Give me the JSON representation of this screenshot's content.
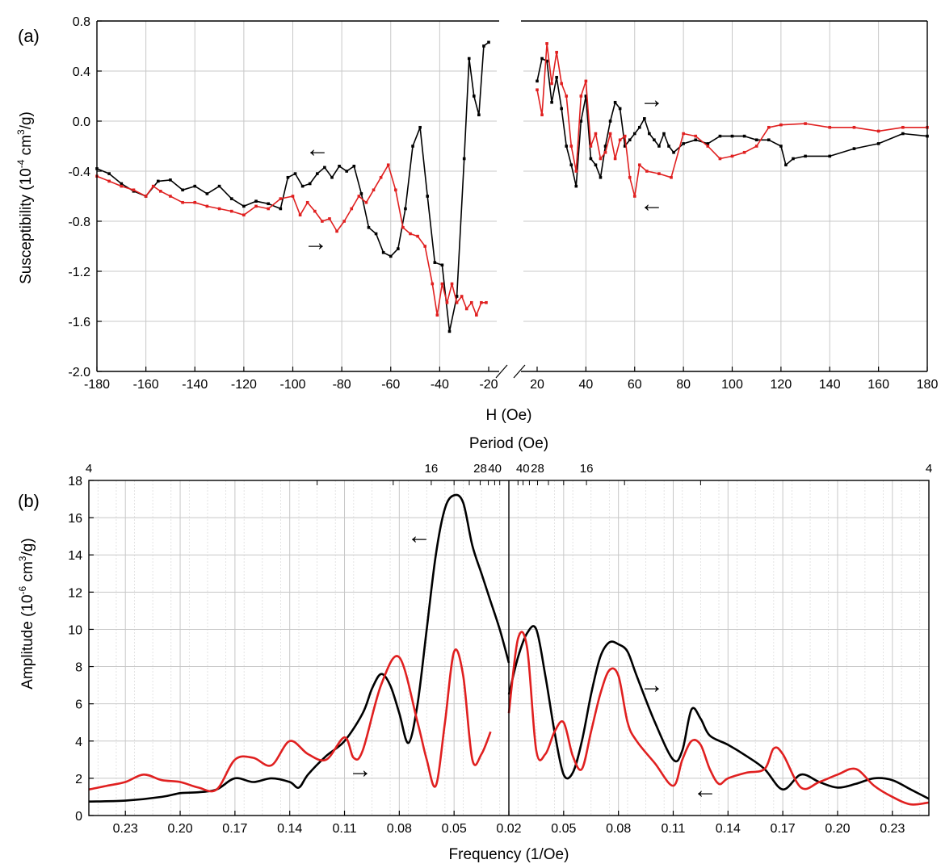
{
  "chart_data": [
    {
      "panel_label": "(a)",
      "type": "line",
      "xlabel": "H (Oe)",
      "ylabel": "Susceptibility (10^-4 cm^3/g)",
      "ylabel_parts": {
        "base": "Susceptibility (10",
        "exp1": "-4",
        "mid": " cm",
        "exp2": "3",
        "tail": "/g)"
      },
      "ylim": [
        -2.0,
        0.8
      ],
      "yticks": [
        "0.8",
        "0.4",
        "0.0",
        "-0.4",
        "-0.8",
        "-1.2",
        "-1.6",
        "-2.0"
      ],
      "ytick_values": [
        0.8,
        0.4,
        0.0,
        -0.4,
        -0.8,
        -1.2,
        -1.6,
        -2.0
      ],
      "x_left_range": [
        -180,
        -20
      ],
      "x_right_range": [
        20,
        180
      ],
      "xticks_left": [
        "-180",
        "-160",
        "-140",
        "-120",
        "-100",
        "-80",
        "-60",
        "-40",
        "-20"
      ],
      "xticks_right": [
        "20",
        "40",
        "60",
        "80",
        "100",
        "120",
        "140",
        "160",
        "180"
      ],
      "axis_break": true,
      "grid": true,
      "annotations": [
        "←",
        "→",
        "→",
        "←"
      ],
      "series": [
        {
          "color": "#000000",
          "left_x": [
            -180,
            -175,
            -170,
            -165,
            -160,
            -155,
            -150,
            -145,
            -140,
            -135,
            -130,
            -125,
            -120,
            -115,
            -110,
            -105,
            -102,
            -99,
            -96,
            -93,
            -90,
            -87,
            -84,
            -81,
            -78,
            -75,
            -72,
            -69,
            -66,
            -63,
            -60,
            -57,
            -54,
            -51,
            -48,
            -45,
            -42,
            -39,
            -36,
            -33,
            -30,
            -28,
            -26,
            -24,
            -22,
            -20
          ],
          "left_y": [
            -0.38,
            -0.42,
            -0.5,
            -0.56,
            -0.6,
            -0.48,
            -0.47,
            -0.55,
            -0.52,
            -0.58,
            -0.52,
            -0.62,
            -0.68,
            -0.64,
            -0.66,
            -0.7,
            -0.45,
            -0.42,
            -0.52,
            -0.5,
            -0.42,
            -0.37,
            -0.45,
            -0.36,
            -0.4,
            -0.36,
            -0.58,
            -0.85,
            -0.9,
            -1.05,
            -1.08,
            -1.02,
            -0.7,
            -0.2,
            -0.05,
            -0.6,
            -1.13,
            -1.15,
            -1.68,
            -1.4,
            -0.3,
            0.5,
            0.2,
            0.05,
            0.6,
            0.63
          ],
          "right_x": [
            20,
            22,
            24,
            26,
            28,
            30,
            32,
            34,
            36,
            38,
            40,
            42,
            44,
            46,
            48,
            50,
            52,
            54,
            56,
            58,
            60,
            62,
            64,
            66,
            68,
            70,
            72,
            74,
            76,
            80,
            85,
            90,
            95,
            100,
            105,
            110,
            115,
            120,
            122,
            125,
            130,
            140,
            150,
            160,
            170,
            180
          ],
          "right_y": [
            0.32,
            0.5,
            0.48,
            0.15,
            0.35,
            0.1,
            -0.2,
            -0.35,
            -0.52,
            0.0,
            0.2,
            -0.3,
            -0.35,
            -0.45,
            -0.2,
            0.0,
            0.15,
            0.1,
            -0.2,
            -0.15,
            -0.1,
            -0.05,
            0.02,
            -0.1,
            -0.15,
            -0.2,
            -0.1,
            -0.2,
            -0.25,
            -0.18,
            -0.15,
            -0.18,
            -0.12,
            -0.12,
            -0.12,
            -0.15,
            -0.15,
            -0.2,
            -0.35,
            -0.3,
            -0.28,
            -0.28,
            -0.22,
            -0.18,
            -0.1,
            -0.12
          ]
        },
        {
          "color": "#e02020",
          "left_x": [
            -180,
            -175,
            -170,
            -165,
            -160,
            -157,
            -154,
            -150,
            -145,
            -140,
            -135,
            -130,
            -125,
            -120,
            -115,
            -110,
            -105,
            -100,
            -97,
            -94,
            -91,
            -88,
            -85,
            -82,
            -79,
            -76,
            -73,
            -70,
            -67,
            -64,
            -61,
            -58,
            -55,
            -52,
            -49,
            -46,
            -43,
            -41,
            -39,
            -37,
            -35,
            -33,
            -31,
            -29,
            -27,
            -25,
            -23,
            -21
          ],
          "left_y": [
            -0.44,
            -0.48,
            -0.52,
            -0.55,
            -0.6,
            -0.52,
            -0.56,
            -0.6,
            -0.65,
            -0.65,
            -0.68,
            -0.7,
            -0.72,
            -0.75,
            -0.68,
            -0.7,
            -0.62,
            -0.6,
            -0.75,
            -0.65,
            -0.72,
            -0.8,
            -0.78,
            -0.88,
            -0.8,
            -0.7,
            -0.6,
            -0.65,
            -0.55,
            -0.45,
            -0.35,
            -0.55,
            -0.85,
            -0.9,
            -0.92,
            -1.0,
            -1.3,
            -1.55,
            -1.3,
            -1.45,
            -1.3,
            -1.45,
            -1.4,
            -1.5,
            -1.45,
            -1.55,
            -1.45,
            -1.45
          ],
          "right_x": [
            20,
            22,
            24,
            26,
            28,
            30,
            32,
            34,
            36,
            38,
            40,
            42,
            44,
            46,
            48,
            50,
            52,
            54,
            56,
            58,
            60,
            62,
            65,
            70,
            75,
            80,
            85,
            90,
            95,
            100,
            105,
            110,
            115,
            120,
            130,
            140,
            150,
            160,
            170,
            180
          ],
          "right_y": [
            0.25,
            0.05,
            0.62,
            0.3,
            0.55,
            0.3,
            0.2,
            -0.2,
            -0.4,
            0.2,
            0.32,
            -0.2,
            -0.1,
            -0.3,
            -0.25,
            -0.1,
            -0.3,
            -0.15,
            -0.12,
            -0.45,
            -0.6,
            -0.35,
            -0.4,
            -0.42,
            -0.45,
            -0.1,
            -0.12,
            -0.2,
            -0.3,
            -0.28,
            -0.25,
            -0.2,
            -0.05,
            -0.03,
            -0.02,
            -0.05,
            -0.05,
            -0.08,
            -0.05,
            -0.05
          ]
        }
      ]
    },
    {
      "panel_label": "(b)",
      "type": "line",
      "xlabel": "Frequency (1/Oe)",
      "top_xlabel": "Period (Oe)",
      "ylabel": "Amplitude (10^-6 cm^3/g)",
      "ylabel_parts": {
        "base": "Amplitude (10",
        "exp1": "-6",
        "mid": " cm",
        "exp2": "3",
        "tail": "/g)"
      },
      "ylim": [
        0,
        18
      ],
      "yticks": [
        "0",
        "2",
        "4",
        "6",
        "8",
        "10",
        "12",
        "14",
        "16",
        "18"
      ],
      "ytick_values": [
        0,
        2,
        4,
        6,
        8,
        10,
        12,
        14,
        16,
        18
      ],
      "x_left_range": [
        0.25,
        0.02
      ],
      "x_right_range": [
        0.02,
        0.25
      ],
      "xticks_left": [
        "0.23",
        "0.20",
        "0.17",
        "0.14",
        "0.11",
        "0.08",
        "0.05",
        "0.02"
      ],
      "xtick_left_values": [
        0.23,
        0.2,
        0.17,
        0.14,
        0.11,
        0.08,
        0.05,
        0.02
      ],
      "xticks_right": [
        "0.05",
        "0.08",
        "0.11",
        "0.14",
        "0.17",
        "0.20",
        "0.23"
      ],
      "xtick_right_values": [
        0.05,
        0.08,
        0.11,
        0.14,
        0.17,
        0.2,
        0.23
      ],
      "top_ticks_left": [
        "4",
        "16",
        "28",
        "40"
      ],
      "top_tick_left_periods": [
        4,
        16,
        28,
        40
      ],
      "top_ticks_right": [
        "40",
        "28",
        "16",
        "4"
      ],
      "top_tick_right_periods": [
        40,
        28,
        16,
        4
      ],
      "grid": true,
      "annotations": [
        "←",
        "→",
        "→",
        "←"
      ],
      "series": [
        {
          "color": "#000000",
          "left_x": [
            0.25,
            0.23,
            0.21,
            0.2,
            0.19,
            0.18,
            0.17,
            0.16,
            0.15,
            0.14,
            0.135,
            0.13,
            0.12,
            0.11,
            0.1,
            0.095,
            0.09,
            0.085,
            0.08,
            0.075,
            0.07,
            0.065,
            0.06,
            0.055,
            0.05,
            0.045,
            0.04,
            0.035,
            0.03,
            0.025,
            0.02
          ],
          "left_y": [
            0.75,
            0.8,
            1.0,
            1.2,
            1.25,
            1.4,
            2.0,
            1.8,
            2.0,
            1.8,
            1.5,
            2.2,
            3.2,
            4.0,
            5.5,
            6.8,
            7.6,
            7.0,
            5.5,
            3.9,
            6.0,
            10.0,
            14.0,
            16.5,
            17.2,
            16.8,
            14.5,
            13.0,
            11.5,
            10.0,
            8.2
          ],
          "right_x": [
            0.02,
            0.025,
            0.03,
            0.035,
            0.04,
            0.045,
            0.05,
            0.055,
            0.06,
            0.065,
            0.07,
            0.075,
            0.08,
            0.085,
            0.09,
            0.1,
            0.11,
            0.115,
            0.12,
            0.125,
            0.13,
            0.14,
            0.15,
            0.16,
            0.17,
            0.18,
            0.19,
            0.2,
            0.21,
            0.22,
            0.23,
            0.24,
            0.25
          ],
          "right_y": [
            6.5,
            8.5,
            9.8,
            10.0,
            7.5,
            4.5,
            2.2,
            2.3,
            4.0,
            6.5,
            8.5,
            9.3,
            9.2,
            8.8,
            7.5,
            5.0,
            3.0,
            3.5,
            5.7,
            5.2,
            4.3,
            3.8,
            3.2,
            2.5,
            1.4,
            2.2,
            1.8,
            1.5,
            1.7,
            2.0,
            1.9,
            1.4,
            0.9
          ]
        },
        {
          "color": "#e02020",
          "left_x": [
            0.25,
            0.24,
            0.23,
            0.22,
            0.21,
            0.2,
            0.19,
            0.18,
            0.17,
            0.16,
            0.15,
            0.14,
            0.13,
            0.12,
            0.11,
            0.105,
            0.1,
            0.09,
            0.08,
            0.07,
            0.065,
            0.06,
            0.055,
            0.05,
            0.045,
            0.04,
            0.035,
            0.03
          ],
          "left_y": [
            1.4,
            1.6,
            1.8,
            2.2,
            1.9,
            1.8,
            1.5,
            1.4,
            3.0,
            3.1,
            2.7,
            4.0,
            3.3,
            3.0,
            4.2,
            3.1,
            3.5,
            7.0,
            8.5,
            5.0,
            3.0,
            1.6,
            5.0,
            8.8,
            7.5,
            3.0,
            3.3,
            4.5
          ],
          "right_x": [
            0.02,
            0.025,
            0.03,
            0.035,
            0.04,
            0.045,
            0.05,
            0.055,
            0.06,
            0.065,
            0.07,
            0.075,
            0.08,
            0.085,
            0.09,
            0.1,
            0.11,
            0.115,
            0.12,
            0.125,
            0.13,
            0.135,
            0.14,
            0.15,
            0.16,
            0.165,
            0.17,
            0.18,
            0.19,
            0.2,
            0.21,
            0.22,
            0.23,
            0.24,
            0.25
          ],
          "right_y": [
            5.5,
            9.5,
            9.0,
            3.5,
            3.3,
            4.5,
            5.0,
            3.2,
            2.5,
            4.5,
            6.5,
            7.8,
            7.5,
            5.0,
            4.0,
            2.8,
            1.6,
            3.0,
            4.0,
            3.8,
            2.5,
            1.7,
            2.0,
            2.3,
            2.5,
            3.6,
            3.3,
            1.5,
            1.8,
            2.2,
            2.5,
            1.6,
            1.0,
            0.6,
            0.7
          ]
        }
      ]
    }
  ]
}
